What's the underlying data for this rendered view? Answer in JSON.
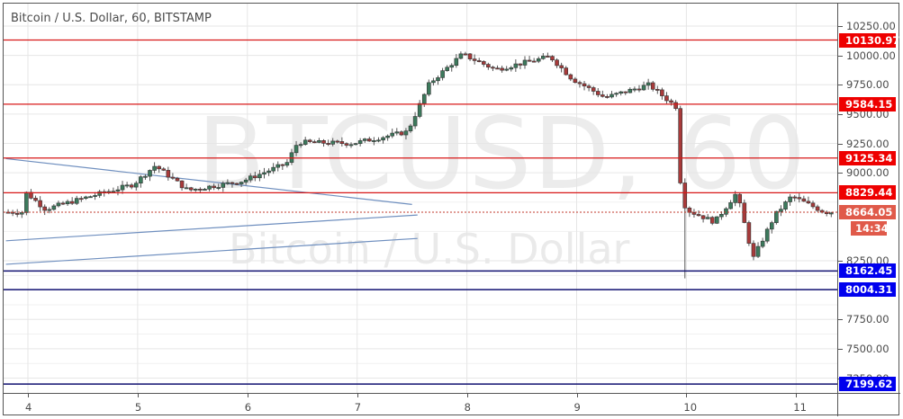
{
  "header": {
    "title": "Bitcoin / U.S. Dollar, 60, BITSTAMP",
    "watermark_symbol": "BTCUSD, 60",
    "watermark_name": "Bitcoin / U.S. Dollar"
  },
  "colors": {
    "resistance": "#ff0000",
    "support": "#0000ee",
    "up_candle": "#3c7a5c",
    "down_candle": "#a83a3a",
    "current_price": "#e05a4a",
    "trendline": "#6f8fbf",
    "grid": "#e6e6e6"
  },
  "price_axis": {
    "ticks": [
      "10250.00",
      "10000.00",
      "9750.00",
      "9500.00",
      "9250.00",
      "9000.00",
      "8250.00",
      "7750.00",
      "7500.00",
      "7250.00"
    ],
    "labels": [
      {
        "value": "10130.97",
        "type": "resistance"
      },
      {
        "value": "9584.15",
        "type": "resistance"
      },
      {
        "value": "9125.34",
        "type": "resistance"
      },
      {
        "value": "8829.44",
        "type": "resistance"
      },
      {
        "value": "8664.05",
        "type": "current"
      },
      {
        "value": "14:34",
        "type": "countdown"
      },
      {
        "value": "8162.45",
        "type": "support"
      },
      {
        "value": "8004.31",
        "type": "support"
      },
      {
        "value": "7199.62",
        "type": "support"
      }
    ]
  },
  "time_axis": {
    "ticks": [
      "4",
      "5",
      "6",
      "7",
      "8",
      "9",
      "10",
      "11"
    ]
  },
  "chart_data": {
    "type": "candlestick",
    "title": "Bitcoin / U.S. Dollar, 60, BITSTAMP",
    "symbol": "BTCUSD",
    "interval": "60",
    "exchange": "BITSTAMP",
    "xlabel": "",
    "ylabel": "",
    "x_ticks": [
      "4",
      "5",
      "6",
      "7",
      "8",
      "9",
      "10",
      "11"
    ],
    "y_ticks": [
      7250,
      7500,
      7750,
      8250,
      9000,
      9250,
      9500,
      9750,
      10000,
      10250
    ],
    "ylim": [
      7100,
      10400
    ],
    "grid": true,
    "horizontal_levels": {
      "resistance": [
        10130.97,
        9584.15,
        9125.34,
        8829.44
      ],
      "support": [
        8162.45,
        8004.31,
        7199.62
      ]
    },
    "current_price": 8664.05,
    "bar_countdown": "14:34",
    "trendlines": [
      {
        "from": {
          "day": 3.8,
          "price": 9120
        },
        "to": {
          "day": 7.5,
          "price": 8730
        }
      },
      {
        "from": {
          "day": 3.8,
          "price": 8420
        },
        "to": {
          "day": 7.55,
          "price": 8640
        }
      },
      {
        "from": {
          "day": 3.8,
          "price": 8220
        },
        "to": {
          "day": 7.55,
          "price": 8440
        }
      }
    ],
    "approx_path": [
      {
        "day": 4.0,
        "close": 8850
      },
      {
        "day": 4.2,
        "close": 8690
      },
      {
        "day": 4.5,
        "close": 8770
      },
      {
        "day": 5.0,
        "close": 8900
      },
      {
        "day": 5.2,
        "close": 9060
      },
      {
        "day": 5.5,
        "close": 8850
      },
      {
        "day": 6.0,
        "close": 8930
      },
      {
        "day": 6.4,
        "close": 9080
      },
      {
        "day": 6.5,
        "close": 9260
      },
      {
        "day": 7.0,
        "close": 9250
      },
      {
        "day": 7.5,
        "close": 9350
      },
      {
        "day": 7.7,
        "close": 9760
      },
      {
        "day": 8.0,
        "close": 10010
      },
      {
        "day": 8.3,
        "close": 9880
      },
      {
        "day": 8.8,
        "close": 9990
      },
      {
        "day": 9.0,
        "close": 9800
      },
      {
        "day": 9.3,
        "close": 9640
      },
      {
        "day": 9.7,
        "close": 9750
      },
      {
        "day": 9.95,
        "close": 9560
      },
      {
        "day": 10.0,
        "close": 8700
      },
      {
        "day": 10.3,
        "close": 8580
      },
      {
        "day": 10.5,
        "close": 8830
      },
      {
        "day": 10.65,
        "close": 8270
      },
      {
        "day": 10.85,
        "close": 8640
      },
      {
        "day": 11.0,
        "close": 8800
      },
      {
        "day": 11.3,
        "close": 8664
      }
    ]
  }
}
